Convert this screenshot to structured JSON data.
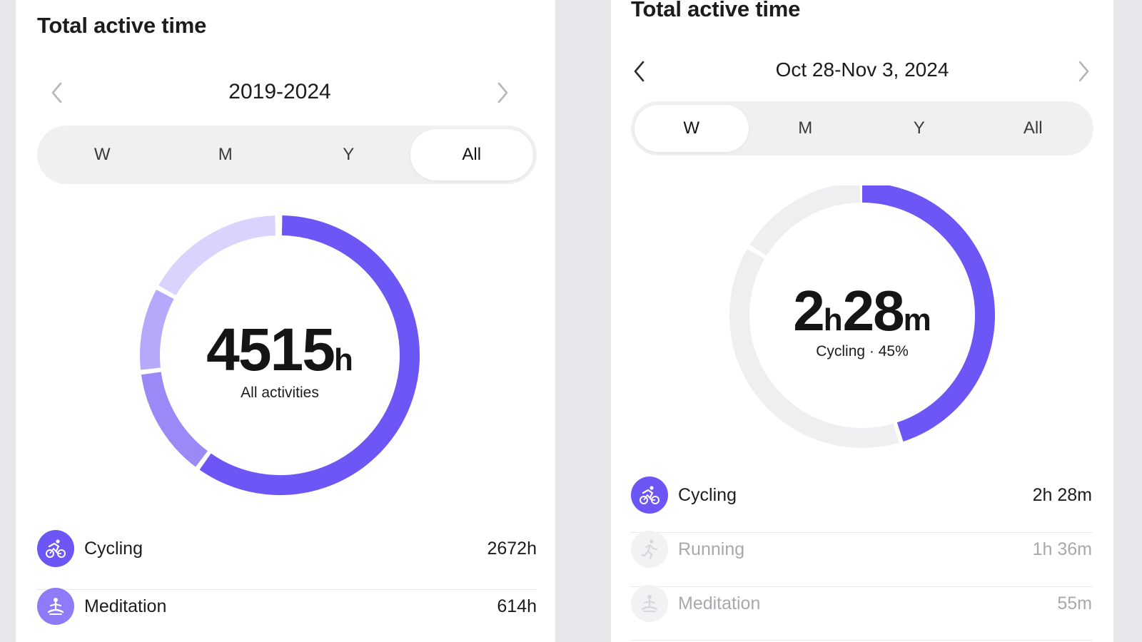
{
  "colors": {
    "accent": "#6c56f5",
    "accent_light": "#9a8af8",
    "accent_lighter": "#b4a9fa",
    "accent_lightest": "#d9d3fd",
    "track": "#efeff1",
    "dim_icon": "#f0f0f2"
  },
  "left": {
    "title": "Total active time",
    "period": "2019-2024",
    "tabs": [
      {
        "label": "W",
        "active": false
      },
      {
        "label": "M",
        "active": false
      },
      {
        "label": "Y",
        "active": false
      },
      {
        "label": "All",
        "active": true
      }
    ],
    "total_value": "4515",
    "total_unit": "h",
    "center_label": "All activities",
    "rows": [
      {
        "name": "Cycling",
        "value": "2672h",
        "icon": "cycling-icon"
      },
      {
        "name": "Meditation",
        "value": "614h",
        "icon": "meditation-icon"
      }
    ]
  },
  "right": {
    "title": "Total active time",
    "period": "Oct 28-Nov 3, 2024",
    "tabs": [
      {
        "label": "W",
        "active": true
      },
      {
        "label": "M",
        "active": false
      },
      {
        "label": "Y",
        "active": false
      },
      {
        "label": "All",
        "active": false
      }
    ],
    "value_hours": "2",
    "unit_hours": "h",
    "value_minutes": "28",
    "unit_minutes": "m",
    "center_label": "Cycling · 45%",
    "highlight_percent": 45,
    "rows": [
      {
        "name": "Cycling",
        "value": "2h 28m",
        "icon": "cycling-icon",
        "dimmed": false
      },
      {
        "name": "Running",
        "value": "1h 36m",
        "icon": "running-icon",
        "dimmed": true
      },
      {
        "name": "Meditation",
        "value": "55m",
        "icon": "meditation-icon",
        "dimmed": true
      }
    ]
  }
}
